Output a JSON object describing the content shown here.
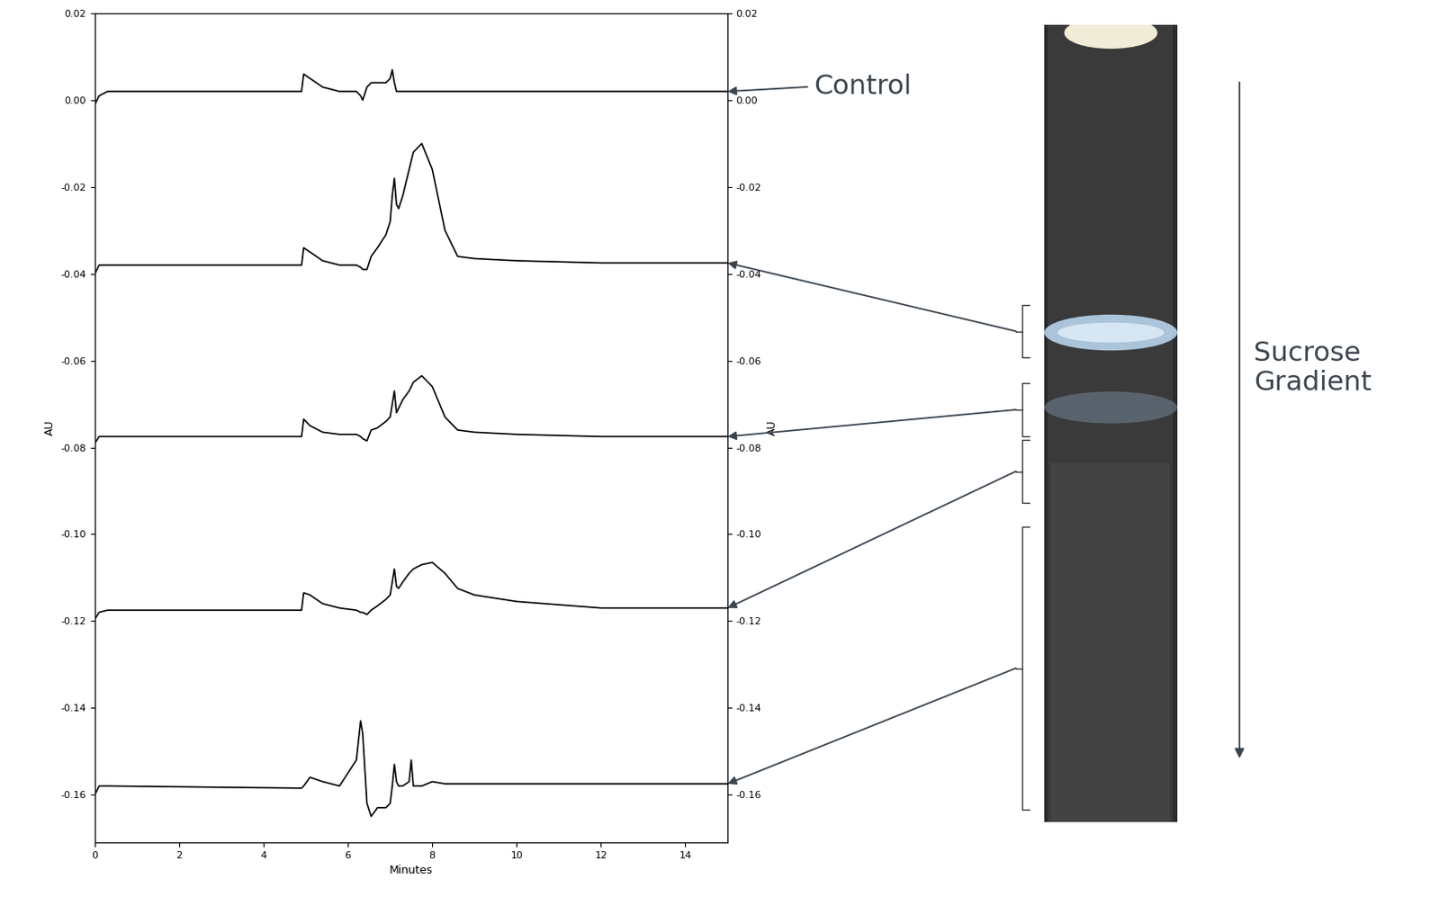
{
  "chart_data": {
    "type": "line",
    "xlabel": "Minutes",
    "ylabel": "AU",
    "y2label": "AU",
    "x": [
      0,
      0.1,
      0.3,
      4.9,
      4.95,
      5.1,
      5.4,
      5.8,
      6.2,
      6.3,
      6.35,
      6.45,
      6.55,
      6.7,
      6.9,
      7.0,
      7.05,
      7.1,
      7.15,
      7.2,
      7.3,
      7.45,
      7.5,
      7.55,
      7.75,
      8.0,
      8.3,
      8.6,
      9.0,
      10,
      12,
      15
    ],
    "series": [
      {
        "color": "#000000",
        "values": [
          -0.001,
          0.001,
          0.002,
          0.002,
          0.006,
          0.005,
          0.003,
          0.002,
          0.002,
          0.001,
          0.0,
          0.003,
          0.004,
          0.004,
          0.004,
          0.005,
          0.007,
          0.004,
          0.002,
          0.002,
          0.002,
          0.002,
          0.002,
          0.002,
          0.002,
          0.002,
          0.002,
          0.002,
          0.002,
          0.002,
          0.002,
          0.002
        ]
      },
      {
        "color": "#000000",
        "values": [
          -0.04,
          -0.038,
          -0.038,
          -0.038,
          -0.034,
          -0.035,
          -0.037,
          -0.038,
          -0.038,
          -0.0385,
          -0.039,
          -0.039,
          -0.036,
          -0.034,
          -0.031,
          -0.028,
          -0.022,
          -0.018,
          -0.024,
          -0.025,
          -0.022,
          -0.016,
          -0.014,
          -0.012,
          -0.01,
          -0.016,
          -0.03,
          -0.036,
          -0.0365,
          -0.037,
          -0.0375,
          -0.0375
        ]
      },
      {
        "color": "#000000",
        "values": [
          -0.079,
          -0.0775,
          -0.0775,
          -0.0775,
          -0.0735,
          -0.075,
          -0.0765,
          -0.077,
          -0.077,
          -0.0775,
          -0.078,
          -0.0785,
          -0.076,
          -0.0755,
          -0.074,
          -0.073,
          -0.07,
          -0.067,
          -0.072,
          -0.071,
          -0.069,
          -0.067,
          -0.066,
          -0.065,
          -0.0635,
          -0.066,
          -0.073,
          -0.076,
          -0.0765,
          -0.077,
          -0.0775,
          -0.0775
        ]
      },
      {
        "color": "#000000",
        "values": [
          -0.1195,
          -0.118,
          -0.1175,
          -0.1175,
          -0.1135,
          -0.114,
          -0.116,
          -0.117,
          -0.1175,
          -0.118,
          -0.118,
          -0.1185,
          -0.1175,
          -0.1165,
          -0.115,
          -0.114,
          -0.111,
          -0.108,
          -0.112,
          -0.1125,
          -0.111,
          -0.109,
          -0.1085,
          -0.108,
          -0.107,
          -0.1065,
          -0.109,
          -0.1125,
          -0.114,
          -0.1155,
          -0.117,
          -0.117
        ]
      },
      {
        "color": "#000000",
        "values": [
          -0.16,
          -0.158,
          -0.158,
          -0.1585,
          -0.158,
          -0.156,
          -0.157,
          -0.158,
          -0.152,
          -0.143,
          -0.146,
          -0.162,
          -0.165,
          -0.163,
          -0.163,
          -0.162,
          -0.158,
          -0.153,
          -0.157,
          -0.158,
          -0.158,
          -0.157,
          -0.152,
          -0.158,
          -0.158,
          -0.157,
          -0.1575,
          -0.1575,
          -0.1575,
          -0.1575,
          -0.1575,
          -0.1575
        ]
      }
    ],
    "xlim": [
      0,
      15
    ],
    "ylim": [
      -0.171,
      0.02
    ],
    "xticks": [
      0,
      2,
      4,
      6,
      8,
      10,
      12,
      14
    ],
    "yticks": [
      {
        "value": 0.02,
        "label": "0.02"
      },
      {
        "value": 0.0,
        "label": "0.00"
      },
      {
        "value": -0.02,
        "label": "-0.02"
      },
      {
        "value": -0.04,
        "label": "-0.04"
      },
      {
        "value": -0.06,
        "label": "-0.06"
      },
      {
        "value": -0.08,
        "label": "-0.08"
      },
      {
        "value": -0.1,
        "label": "-0.10"
      },
      {
        "value": -0.12,
        "label": "-0.12"
      },
      {
        "value": -0.14,
        "label": "-0.14"
      },
      {
        "value": -0.16,
        "label": "-0.16"
      }
    ],
    "y2lim": [
      -0.171,
      0.02
    ],
    "y2ticks": [
      {
        "value": 0.02,
        "label": "0.02"
      },
      {
        "value": 0.0,
        "label": "0.00"
      },
      {
        "value": -0.02,
        "label": "-0.02"
      },
      {
        "value": -0.04,
        "label": "-0.04"
      },
      {
        "value": -0.06,
        "label": "-0.06"
      },
      {
        "value": -0.08,
        "label": "-0.08"
      },
      {
        "value": -0.1,
        "label": "-0.10"
      },
      {
        "value": -0.12,
        "label": "-0.12"
      },
      {
        "value": -0.14,
        "label": "-0.14"
      },
      {
        "value": -0.16,
        "label": "-0.16"
      }
    ],
    "annotations": [
      "Control",
      "Sucrose\nGradient"
    ]
  }
}
